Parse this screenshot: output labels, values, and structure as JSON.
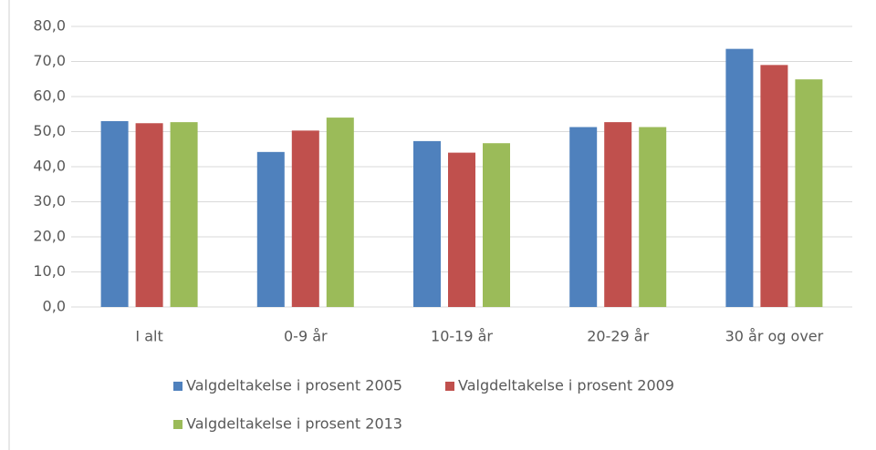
{
  "chart_data": {
    "type": "bar",
    "categories": [
      "I alt",
      "0-9 år",
      "10-19 år",
      "20-29 år",
      "30 år og over"
    ],
    "series": [
      {
        "name": "Valgdeltakelse i prosent 2005",
        "color": "#4f81bd",
        "values": [
          53.0,
          44.2,
          47.3,
          51.3,
          73.6
        ]
      },
      {
        "name": "Valgdeltakelse i prosent 2009",
        "color": "#c0504d",
        "values": [
          52.4,
          50.3,
          44.0,
          52.7,
          69.0
        ]
      },
      {
        "name": "Valgdeltakelse i prosent 2013",
        "color": "#9bbb59",
        "values": [
          52.7,
          54.0,
          46.7,
          51.3,
          64.9
        ]
      }
    ],
    "ylim": [
      0,
      80
    ],
    "yticks": [
      {
        "value": 0,
        "label": "0,0"
      },
      {
        "value": 10,
        "label": "10,0"
      },
      {
        "value": 20,
        "label": "20,0"
      },
      {
        "value": 30,
        "label": "30,0"
      },
      {
        "value": 40,
        "label": "40,0"
      },
      {
        "value": 50,
        "label": "50,0"
      },
      {
        "value": 60,
        "label": "60,0"
      },
      {
        "value": 70,
        "label": "70,0"
      },
      {
        "value": 80,
        "label": "80,0"
      }
    ],
    "grid": true
  }
}
